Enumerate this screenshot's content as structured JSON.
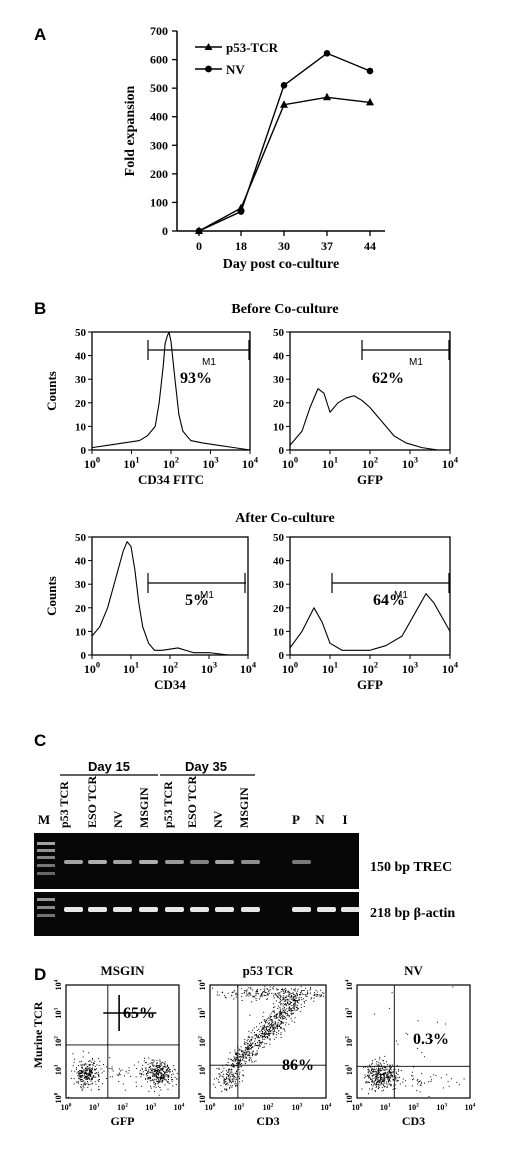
{
  "panels": {
    "A": "A",
    "B": "B",
    "C": "C",
    "D": "D"
  },
  "chart_data": [
    {
      "panel": "A",
      "type": "line",
      "xlabel": "Day post co-culture",
      "ylabel": "Fold expansion",
      "categories": [
        "0",
        "18",
        "30",
        "37",
        "44"
      ],
      "yticks": [
        "0",
        "100",
        "200",
        "300",
        "400",
        "500",
        "600",
        "700"
      ],
      "ylim": [
        0,
        700
      ],
      "legend_position": "top-left",
      "series": [
        {
          "name": "p53-TCR",
          "marker": "triangle",
          "values": [
            0,
            80,
            442,
            468,
            450
          ]
        },
        {
          "name": "NV",
          "marker": "circle",
          "values": [
            0,
            68,
            510,
            622,
            560
          ]
        }
      ]
    },
    {
      "panel": "B",
      "type": "area",
      "section_title": "Before Co-culture",
      "plots": [
        {
          "xlabel": "CD34 FITC",
          "ylabel": "Counts",
          "percent": "93%",
          "gate": "M1",
          "ylim": [
            0,
            50
          ],
          "yticks": [
            "0",
            "10",
            "20",
            "30",
            "40",
            "50"
          ],
          "xticks": [
            "10",
            "10",
            "10",
            "10",
            "10"
          ],
          "xexp": [
            "0",
            "1",
            "2",
            "3",
            "4"
          ],
          "x": [
            0,
            0.4,
            0.8,
            1.2,
            1.4,
            1.6,
            1.7,
            1.8,
            1.85,
            1.9,
            1.95,
            2.0,
            2.1,
            2.2,
            2.3,
            2.5,
            2.8,
            3.2,
            3.6,
            4.0
          ],
          "y": [
            1,
            2,
            3,
            4,
            6,
            10,
            20,
            35,
            45,
            48,
            50,
            46,
            30,
            15,
            8,
            4,
            3,
            2,
            1,
            0
          ]
        },
        {
          "xlabel": "GFP",
          "ylabel": "",
          "percent": "62%",
          "gate": "M1",
          "ylim": [
            0,
            50
          ],
          "yticks": [
            "0",
            "10",
            "20",
            "30",
            "40",
            "50"
          ],
          "xticks": [
            "10",
            "10",
            "10",
            "10",
            "10"
          ],
          "xexp": [
            "0",
            "1",
            "2",
            "3",
            "4"
          ],
          "x": [
            0,
            0.3,
            0.5,
            0.7,
            0.85,
            1.0,
            1.2,
            1.4,
            1.6,
            1.8,
            2.0,
            2.2,
            2.4,
            2.6,
            2.9,
            3.3,
            3.7,
            4.0
          ],
          "y": [
            2,
            8,
            18,
            26,
            24,
            16,
            20,
            22,
            23,
            21,
            18,
            14,
            10,
            6,
            3,
            1,
            0,
            0
          ]
        }
      ]
    },
    {
      "panel": "B2",
      "type": "area",
      "section_title": "After Co-culture",
      "plots": [
        {
          "xlabel": "CD34",
          "ylabel": "Counts",
          "percent": "5%",
          "gate": "M1",
          "ylim": [
            0,
            50
          ],
          "yticks": [
            "0",
            "10",
            "20",
            "30",
            "40",
            "50"
          ],
          "xticks": [
            "10",
            "10",
            "10",
            "10",
            "10"
          ],
          "xexp": [
            "0",
            "1",
            "2",
            "3",
            "4"
          ],
          "x": [
            0,
            0.2,
            0.4,
            0.6,
            0.8,
            0.9,
            1.0,
            1.1,
            1.2,
            1.3,
            1.45,
            1.6,
            1.8,
            2.2,
            2.6,
            3.0,
            3.5,
            4.0
          ],
          "y": [
            8,
            12,
            20,
            32,
            44,
            48,
            46,
            36,
            22,
            12,
            5,
            2,
            2,
            3,
            1,
            1,
            0,
            0
          ]
        },
        {
          "xlabel": "GFP",
          "ylabel": "",
          "percent": "64%",
          "gate": "M1",
          "ylim": [
            0,
            50
          ],
          "yticks": [
            "0",
            "10",
            "20",
            "30",
            "40",
            "50"
          ],
          "xticks": [
            "10",
            "10",
            "10",
            "10",
            "10"
          ],
          "xexp": [
            "0",
            "1",
            "2",
            "3",
            "4"
          ],
          "x": [
            0,
            0.3,
            0.6,
            0.8,
            1.0,
            1.3,
            1.6,
            2.0,
            2.4,
            2.8,
            3.0,
            3.2,
            3.4,
            3.6,
            3.8,
            4.0
          ],
          "y": [
            3,
            10,
            20,
            14,
            5,
            2,
            2,
            2,
            4,
            8,
            14,
            20,
            26,
            22,
            16,
            10
          ]
        }
      ]
    }
  ],
  "gel": {
    "group_labels": [
      "Day 15",
      "Day 35"
    ],
    "lane_labels": [
      "p53 TCR",
      "ESO TCR",
      "NV",
      "MSGIN",
      "p53 TCR",
      "ESO TCR",
      "NV",
      "MSGIN"
    ],
    "marker_label": "M",
    "control_labels": [
      "P",
      "N",
      "I"
    ],
    "bands": [
      "150 bp TREC",
      "218 bp β-actin"
    ]
  },
  "dotplots": {
    "ylabel": "Murine TCR",
    "xtick_base": "10",
    "xexp": [
      "0",
      "1",
      "2",
      "3",
      "4"
    ],
    "plots": [
      {
        "title": "MSGIN",
        "xlabel": "GFP",
        "percent": "65%"
      },
      {
        "title": "p53 TCR",
        "xlabel": "CD3",
        "percent": "86%"
      },
      {
        "title": "NV",
        "xlabel": "CD3",
        "percent": "0.3%"
      }
    ]
  }
}
